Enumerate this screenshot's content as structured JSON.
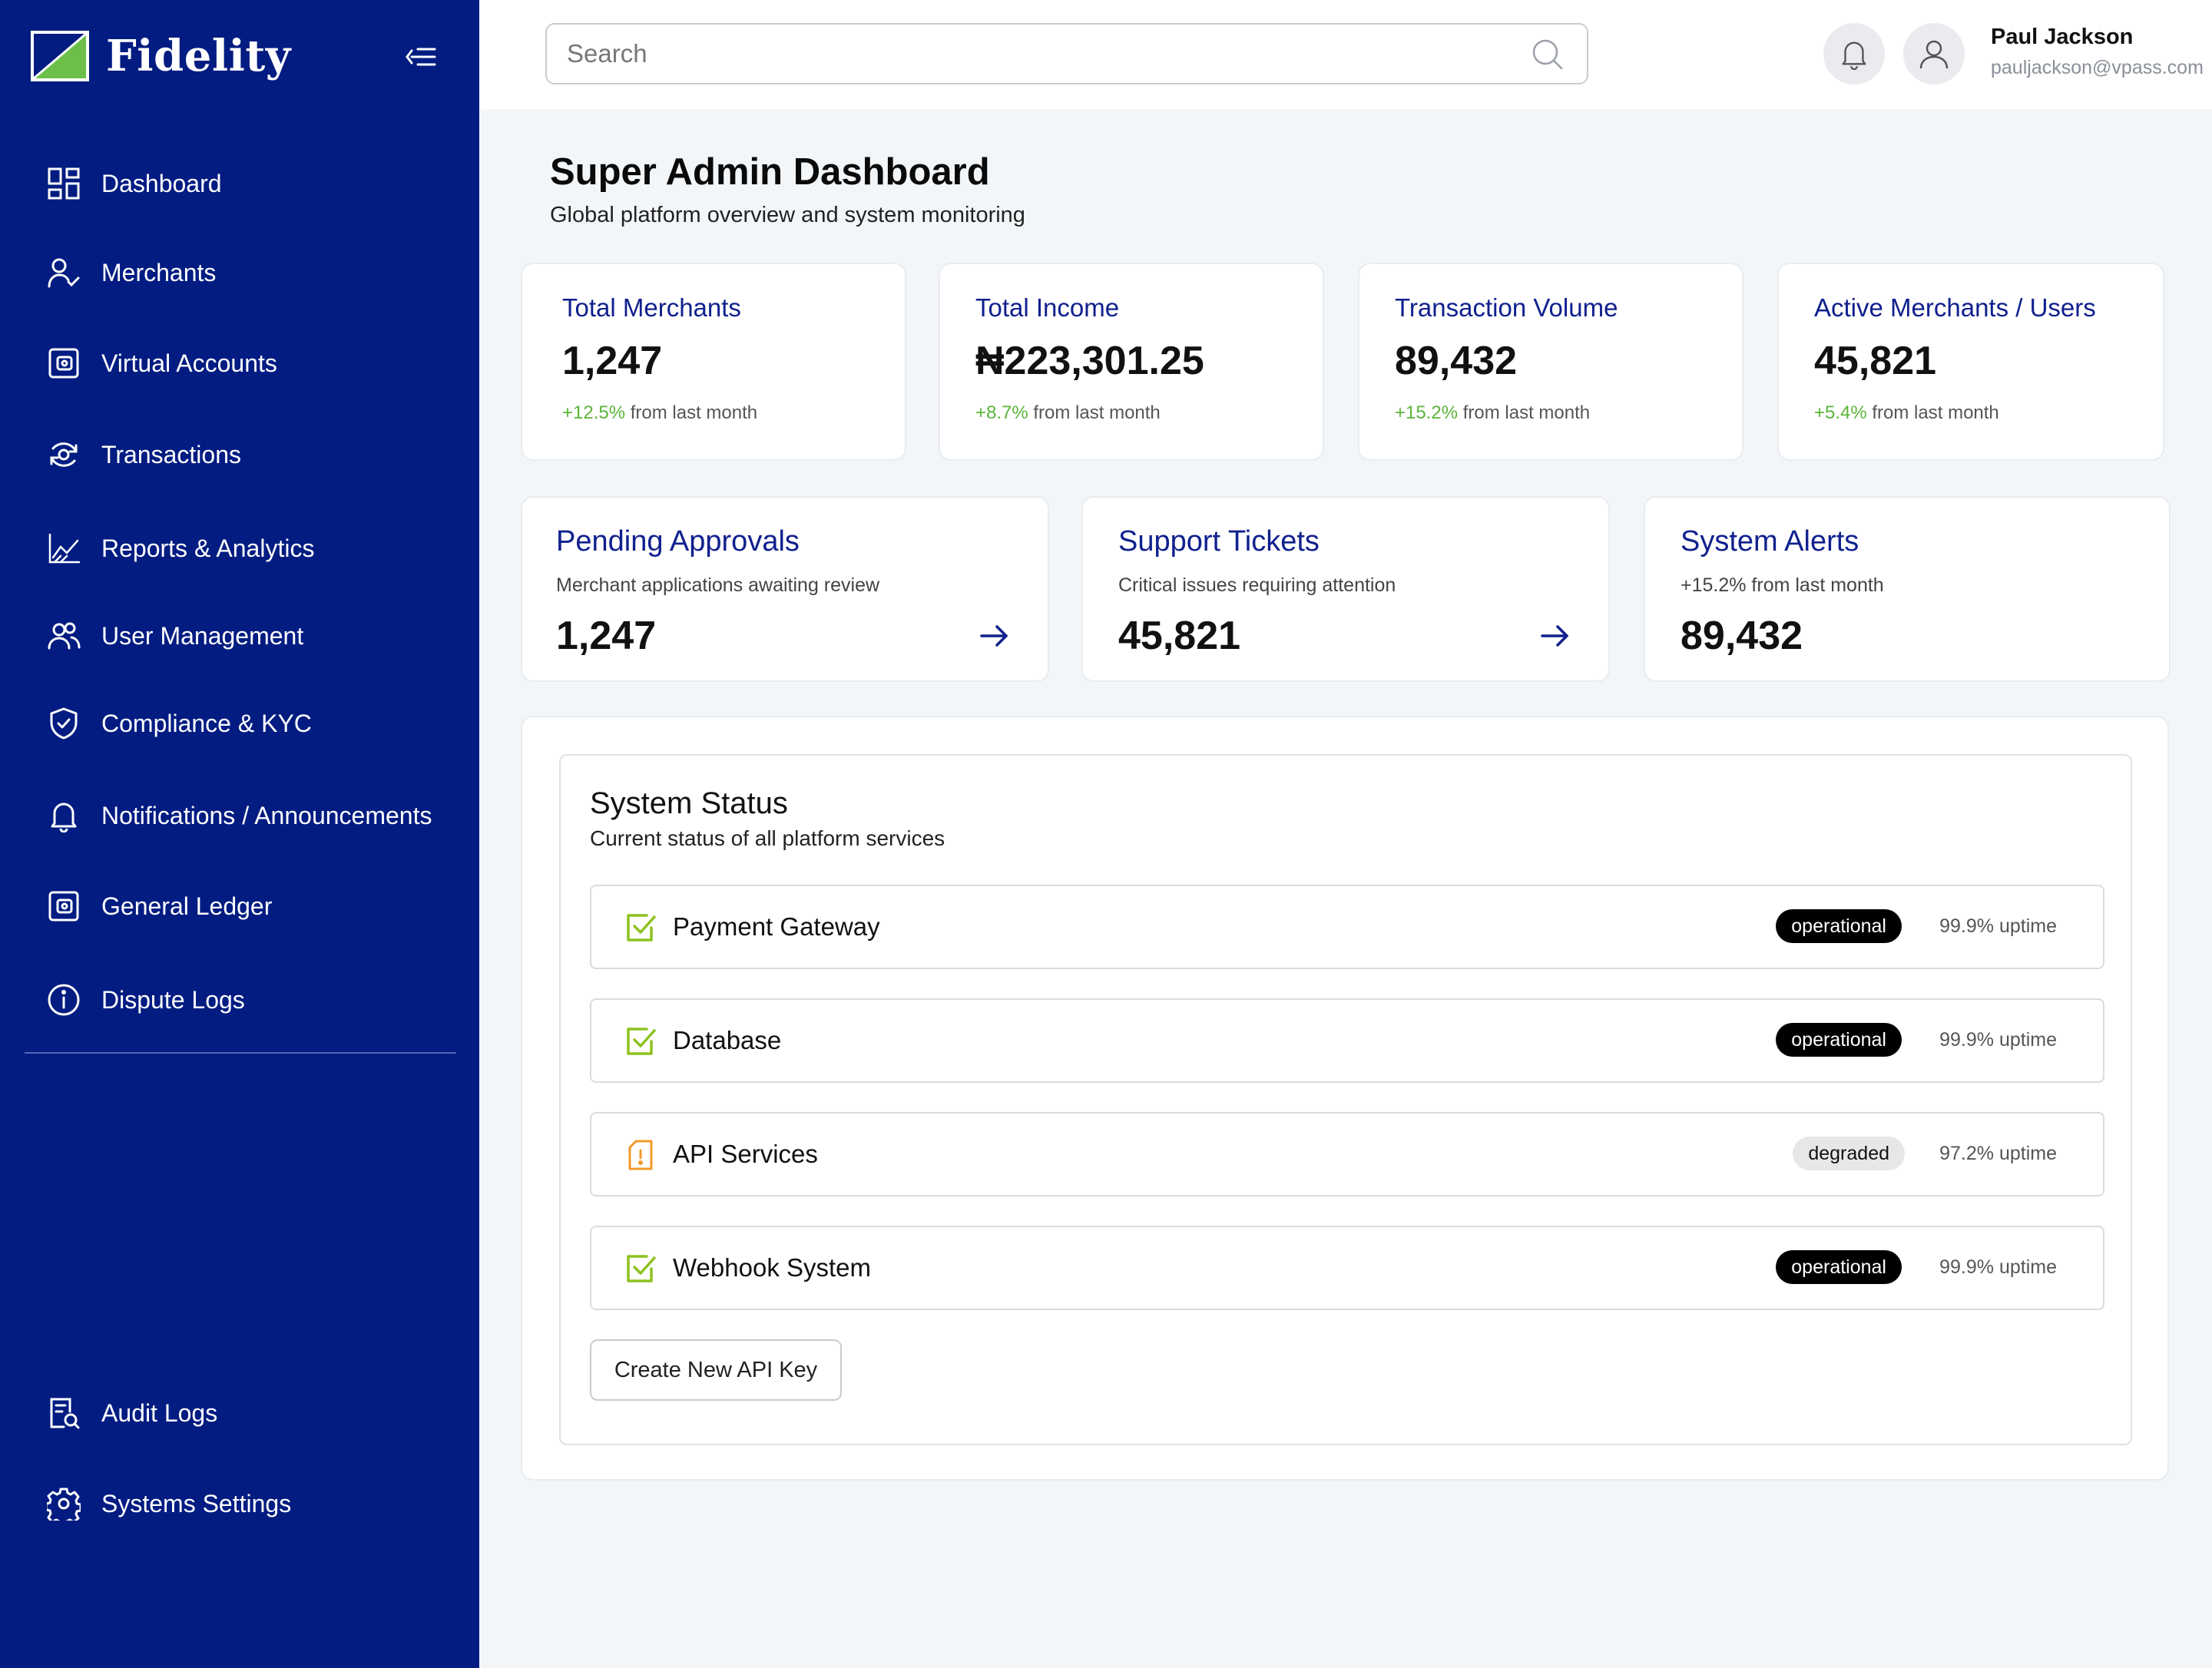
{
  "brand": {
    "name": "Fidelity",
    "logo_colors": [
      "#6cc04a",
      "#021c82",
      "#ffffff"
    ]
  },
  "colors": {
    "sidebar": "#021c82",
    "accent": "#10208e",
    "positive": "#5ab53a",
    "background": "#f3f6f9"
  },
  "sidebar": {
    "items": [
      {
        "label": "Dashboard",
        "icon": "grid-icon"
      },
      {
        "label": "Merchants",
        "icon": "user-check-icon"
      },
      {
        "label": "Virtual Accounts",
        "icon": "wallet-icon"
      },
      {
        "label": "Transactions",
        "icon": "transactions-icon"
      },
      {
        "label": "Reports & Analytics",
        "icon": "chart-icon"
      },
      {
        "label": "User Management",
        "icon": "users-icon"
      },
      {
        "label": "Compliance & KYC",
        "icon": "shield-icon"
      },
      {
        "label": "Notifications / Announcements",
        "icon": "bell-icon"
      },
      {
        "label": "General Ledger",
        "icon": "ledger-icon"
      },
      {
        "label": "Dispute Logs",
        "icon": "info-icon"
      }
    ],
    "bottom_items": [
      {
        "label": "Audit Logs",
        "icon": "audit-icon"
      },
      {
        "label": "Systems Settings",
        "icon": "gear-icon"
      }
    ]
  },
  "header": {
    "search_placeholder": "Search",
    "user": {
      "name": "Paul Jackson",
      "email": "pauljackson@vpass.com"
    }
  },
  "page": {
    "title": "Super Admin Dashboard",
    "subtitle": "Global platform overview and system monitoring"
  },
  "stats": [
    {
      "title": "Total Merchants",
      "value": "1,247",
      "change": "+12.5%",
      "change_suffix": " from last month"
    },
    {
      "title": "Total Income",
      "value": "₦223,301.25",
      "change": "+8.7%",
      "change_suffix": " from last month"
    },
    {
      "title": "Transaction Volume",
      "value": "89,432",
      "change": "+15.2%",
      "change_suffix": " from last month"
    },
    {
      "title": "Active Merchants / Users",
      "value": "45,821",
      "change": "+5.4%",
      "change_suffix": " from last month"
    }
  ],
  "action_cards": [
    {
      "title": "Pending Approvals",
      "description": "Merchant applications awaiting review",
      "value": "1,247"
    },
    {
      "title": "Support Tickets",
      "description": "Critical issues requiring attention",
      "value": "45,821"
    },
    {
      "title": "System Alerts",
      "description": "+15.2% from last month",
      "value": "89,432"
    }
  ],
  "system_status": {
    "title": "System Status",
    "subtitle": "Current status of all platform services",
    "services": [
      {
        "name": "Payment Gateway",
        "status": "operational",
        "uptime": "99.9% uptime",
        "icon": "check-square-icon"
      },
      {
        "name": "Database",
        "status": "operational",
        "uptime": "99.9% uptime",
        "icon": "check-square-icon"
      },
      {
        "name": "API Services",
        "status": "degraded",
        "uptime": "97.2% uptime",
        "icon": "alert-icon"
      },
      {
        "name": "Webhook System",
        "status": "operational",
        "uptime": "99.9% uptime",
        "icon": "check-square-icon"
      }
    ],
    "create_button": "Create New API Key"
  }
}
